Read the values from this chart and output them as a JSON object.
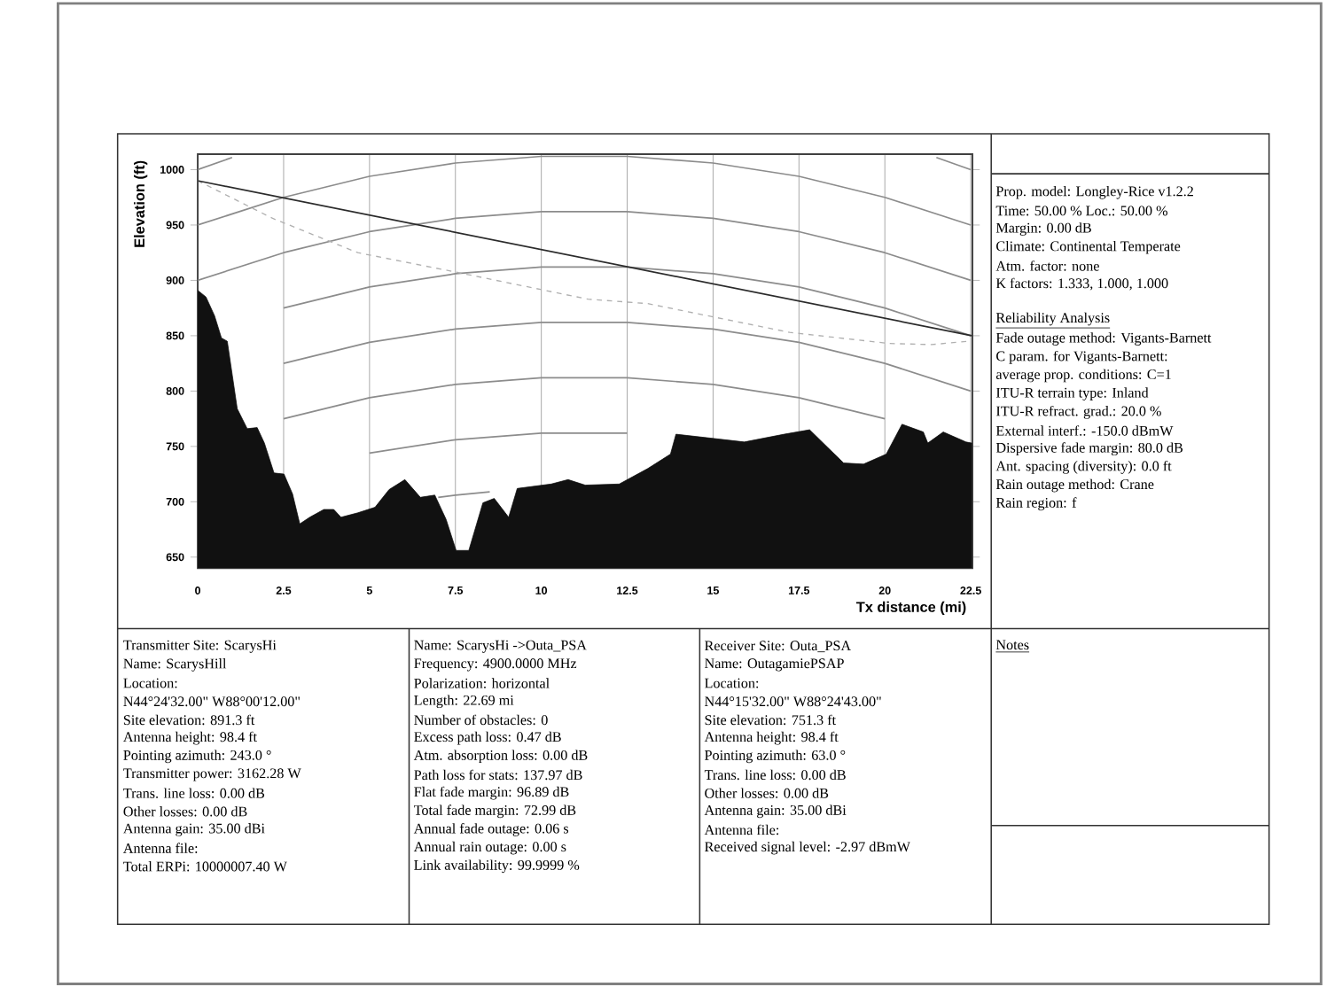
{
  "chart_data": {
    "type": "area",
    "xlabel": "Tx distance (mi)",
    "ylabel": "Elevation (ft)",
    "xlim": [
      0,
      22.55
    ],
    "ylim": [
      640,
      1014
    ],
    "xticks": [
      0,
      2.5,
      5,
      7.5,
      10,
      12.5,
      15,
      17.5,
      20,
      22.5
    ],
    "yticks": [
      650,
      700,
      750,
      800,
      850,
      900,
      950,
      1000
    ],
    "grid": "x",
    "series": [
      {
        "type": "line",
        "color": "#8c8c8c",
        "x": [
          0,
          1
        ],
        "values": [
          1000,
          1011
        ]
      },
      {
        "type": "line",
        "color": "#8c8c8c",
        "x": [
          21.5,
          22.5
        ],
        "values": [
          1011,
          1000
        ]
      },
      {
        "type": "line",
        "color": "#8c8c8c",
        "x": [
          0,
          2.5,
          5,
          7.5,
          10,
          12.5,
          15,
          17.5,
          20,
          22.5
        ],
        "values": [
          950,
          975,
          994,
          1006,
          1012,
          1012,
          1006,
          994,
          975,
          950
        ]
      },
      {
        "type": "line",
        "color": "#8c8c8c",
        "x": [
          0,
          2.5,
          5,
          7.5,
          10,
          12.5,
          15,
          17.5,
          20,
          22.5
        ],
        "values": [
          900,
          925,
          944,
          956,
          962,
          962,
          956,
          944,
          925,
          900
        ]
      },
      {
        "type": "line",
        "color": "#8c8c8c",
        "x": [
          2.5,
          5,
          7.5,
          10,
          12.5,
          15,
          17.5,
          20,
          22.5
        ],
        "values": [
          875,
          894,
          906,
          912,
          912,
          906,
          894,
          875,
          850
        ]
      },
      {
        "type": "line",
        "color": "#8c8c8c",
        "x": [
          2.5,
          5,
          7.5,
          10,
          12.5,
          15,
          17.5,
          20,
          22.5
        ],
        "values": [
          825,
          844,
          856,
          862,
          862,
          856,
          844,
          825,
          800
        ]
      },
      {
        "type": "line",
        "color": "#8c8c8c",
        "x": [
          2.5,
          5,
          7.5,
          10,
          12.5,
          15,
          17.5,
          20
        ],
        "values": [
          775,
          794,
          806,
          812,
          812,
          806,
          794,
          775
        ]
      },
      {
        "type": "line",
        "color": "#8c8c8c",
        "x": [
          5,
          7.5,
          10,
          12.5
        ],
        "values": [
          744,
          756,
          762,
          762
        ]
      },
      {
        "type": "line",
        "color": "#8c8c8c",
        "x": [
          7,
          7.5,
          8.5
        ],
        "values": [
          704,
          706,
          709
        ]
      },
      {
        "color": "#111111",
        "x": [
          0,
          0.24,
          0.49,
          0.69,
          0.86,
          1.15,
          1.44,
          1.73,
          1.94,
          2.22,
          2.51,
          2.76,
          2.97,
          3.26,
          3.67,
          3.96,
          4.17,
          4.66,
          5.16,
          5.57,
          6.03,
          6.48,
          6.9,
          7.23,
          7.52,
          7.89,
          8.3,
          8.63,
          9.05,
          9.3,
          10.29,
          10.78,
          11.28,
          12.27,
          13.1,
          13.76,
          13.92,
          15.91,
          17.07,
          17.81,
          18.8,
          19.38,
          20.04,
          20.5,
          21.12,
          21.25,
          21.7,
          22.36,
          22.53
        ],
        "values": [
          891,
          885,
          868,
          848,
          845,
          784,
          766,
          767,
          753,
          726,
          725,
          707,
          680,
          686,
          693,
          693,
          686,
          690,
          695,
          711,
          720,
          704,
          706,
          684,
          656,
          656,
          699,
          703,
          686,
          712,
          716,
          720,
          715,
          716,
          730,
          743,
          761,
          754,
          761,
          765,
          735,
          734,
          743,
          770,
          763,
          753,
          763,
          754,
          753
        ]
      },
      {
        "type": "line",
        "color": "#b0b0b0",
        "line_style": "dashed",
        "x": [
          0,
          2.18,
          4.66,
          7.43,
          11.36,
          13.1,
          17.23,
          20.13,
          21.36,
          22.44
        ],
        "values": [
          990,
          956,
          925,
          908,
          883,
          879,
          853,
          843,
          842,
          845
        ]
      },
      {
        "type": "line",
        "color": "#2b2b2b",
        "x": [
          0,
          22.53
        ],
        "values": [
          990,
          850
        ]
      }
    ],
    "annotations": [
      "Prop. model: Longley-Rice v1.2.2",
      "Time: 50.00 %  Loc.: 50.00 %",
      "Margin: 0.00 dB",
      "Climate: Continental Temperate",
      "Atm. factor: none",
      "K factors: 1.333, 1.000, 1.000",
      "Reliability Analysis",
      "Fade outage method: Vigants-Barnett",
      "C param. for Vigants-Barnett:",
      "average prop. conditions: C=1",
      "ITU-R terrain type: Inland",
      "ITU-R refract. grad.: 20.0 %",
      "External interf.: -150.0 dBmW",
      "Dispersive fade margin: 80.0 dB",
      "Ant. spacing (diversity): 0.0 ft",
      "Rain outage method: Crane",
      "Rain region: f",
      "Transmitter Site: ScarysHi",
      "Name: ScarysHill",
      "Location:",
      "N44°24'32.00\" W88°00'12.00\"",
      "Site elevation: 891.3 ft",
      "Antenna height: 98.4 ft",
      "Pointing azimuth: 243.0 °",
      "Transmitter power: 3162.28 W",
      "Trans. line loss: 0.00 dB",
      "Other losses: 0.00 dB",
      "Antenna gain: 35.00 dBi",
      "Antenna file:",
      "Total ERPi: 10000007.40 W",
      "Name: ScarysHi ->Outa_PSA",
      "Frequency: 4900.0000 MHz",
      "Polarization: horizontal",
      "Length: 22.69 mi",
      "Number of obstacles: 0",
      "Excess path loss: 0.47 dB",
      "Atm. absorption loss: 0.00 dB",
      "Path loss for stats: 137.97 dB",
      "Flat fade margin: 96.89 dB",
      "Total fade margin: 72.99 dB",
      "Annual fade outage: 0.06 s",
      "Annual rain outage: 0.00 s",
      "Link availability: 99.9999 %",
      "Receiver Site: Outa_PSA",
      "Name: OutagamiePSAP",
      "Location:",
      "N44°15'32.00\" W88°24'43.00\"",
      "Site elevation: 751.3 ft",
      "Antenna height: 98.4 ft",
      "Pointing azimuth: 63.0 °",
      "Trans. line loss: 0.00 dB",
      "Other losses: 0.00 dB",
      "Antenna gain: 35.00 dBi",
      "Antenna file:",
      "Received signal level: -2.97 dBmW",
      "Notes"
    ]
  }
}
